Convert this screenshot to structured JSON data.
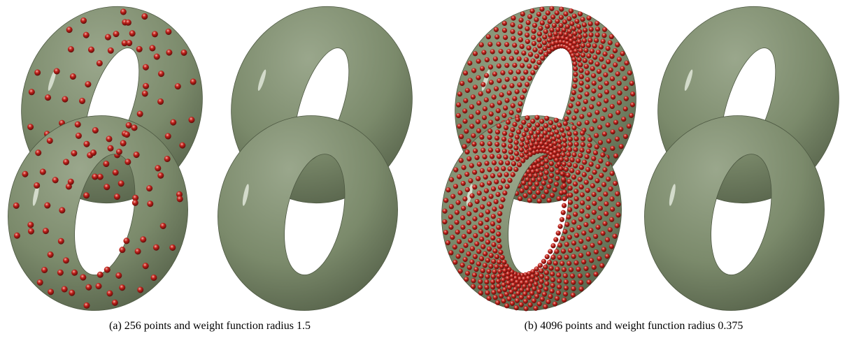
{
  "figure": {
    "subfigures": [
      {
        "label": "(a)",
        "caption": "256 points and weight function radius 1.5"
      },
      {
        "label": "(b)",
        "caption": "4096 points and weight function radius 0.375"
      }
    ]
  }
}
